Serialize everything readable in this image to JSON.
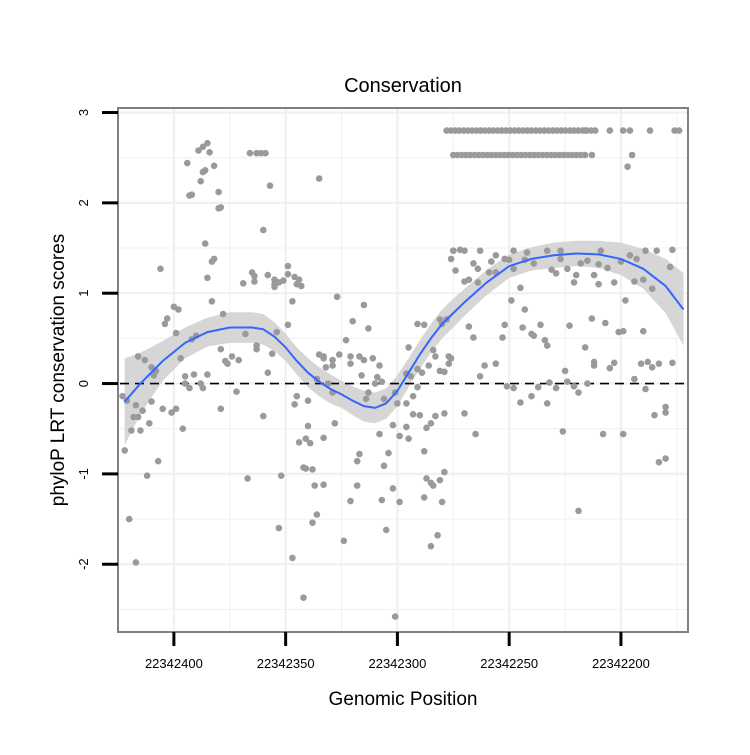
{
  "chart_data": {
    "type": "scatter",
    "title": "Conservation",
    "xlabel": "Genomic Position",
    "ylabel": "phyloP LRT conservation scores",
    "x_reversed": true,
    "xlim": [
      22342425,
      22342170
    ],
    "ylim": [
      -2.75,
      3.05
    ],
    "x_ticks": [
      22342400,
      22342350,
      22342300,
      22342250,
      22342200
    ],
    "x_tick_labels": [
      "22342400",
      "22342350",
      "22342300",
      "22342250",
      "22342200"
    ],
    "y_ticks": [
      -2,
      -1,
      0,
      1,
      2,
      3
    ],
    "y_tick_labels": [
      "-2",
      "-1",
      "0",
      "1",
      "2",
      "3"
    ],
    "grid": true,
    "reference_line": {
      "y": 0,
      "style": "dashed"
    },
    "colors": {
      "points": "#9a9a9a",
      "smooth": "#3366ff",
      "band": "#d6d6d6",
      "frame": "#808080",
      "grid": "#f0f0f0"
    },
    "points": [
      [
        22342403,
        0.72
      ],
      [
        22342398,
        0.82
      ],
      [
        22342399,
        0.56
      ],
      [
        22342397,
        0.28
      ],
      [
        22342395,
        0.0
      ],
      [
        22342393,
        -0.05
      ],
      [
        22342401,
        -0.32
      ],
      [
        22342405,
        -0.28
      ],
      [
        22342408,
        0.14
      ],
      [
        22342411,
        -0.44
      ],
      [
        22342407,
        -0.86
      ],
      [
        22342415,
        -0.52
      ],
      [
        22342418,
        -0.37
      ],
      [
        22342417,
        -0.24
      ],
      [
        22342419,
        -0.52
      ],
      [
        22342414,
        -0.3
      ],
      [
        22342416,
        -0.37
      ],
      [
        22342410,
        -0.2
      ],
      [
        22342421,
        -0.19
      ],
      [
        22342423,
        -0.14
      ],
      [
        22342422,
        -0.74
      ],
      [
        22342420,
        -1.5
      ],
      [
        22342417,
        -1.98
      ],
      [
        22342412,
        -1.02
      ],
      [
        22342410,
        0.18
      ],
      [
        22342406,
        1.27
      ],
      [
        22342404,
        0.66
      ],
      [
        22342400,
        0.85
      ],
      [
        22342413,
        0.26
      ],
      [
        22342416,
        0.3
      ],
      [
        22342409,
        0.09
      ],
      [
        22342394,
        2.44
      ],
      [
        22342393,
        2.08
      ],
      [
        22342392,
        2.09
      ],
      [
        22342389,
        2.58
      ],
      [
        22342387,
        2.62
      ],
      [
        22342385,
        2.66
      ],
      [
        22342384,
        2.56
      ],
      [
        22342387,
        2.34
      ],
      [
        22342386,
        2.36
      ],
      [
        22342382,
        2.41
      ],
      [
        22342388,
        2.24
      ],
      [
        22342380,
        2.12
      ],
      [
        22342380,
        1.94
      ],
      [
        22342379,
        1.95
      ],
      [
        22342386,
        1.55
      ],
      [
        22342383,
        1.35
      ],
      [
        22342382,
        1.38
      ],
      [
        22342385,
        1.17
      ],
      [
        22342383,
        0.91
      ],
      [
        22342378,
        0.77
      ],
      [
        22342379,
        0.38
      ],
      [
        22342374,
        0.3
      ],
      [
        22342371,
        0.26
      ],
      [
        22342377,
        0.25
      ],
      [
        22342390,
        0.53
      ],
      [
        22342392,
        0.49
      ],
      [
        22342388,
        0.0
      ],
      [
        22342387,
        -0.05
      ],
      [
        22342385,
        0.1
      ],
      [
        22342391,
        0.1
      ],
      [
        22342395,
        0.08
      ],
      [
        22342396,
        -0.5
      ],
      [
        22342399,
        -0.28
      ],
      [
        22342379,
        -0.28
      ],
      [
        22342376,
        0.22
      ],
      [
        22342368,
        0.55
      ],
      [
        22342363,
        0.42
      ],
      [
        22342363,
        0.38
      ],
      [
        22342372,
        -0.09
      ],
      [
        22342367,
        -1.05
      ],
      [
        22342366,
        2.55
      ],
      [
        22342363,
        2.55
      ],
      [
        22342361,
        2.55
      ],
      [
        22342359,
        2.55
      ],
      [
        22342357,
        2.19
      ],
      [
        22342360,
        1.7
      ],
      [
        22342364,
        1.19
      ],
      [
        22342365,
        1.23
      ],
      [
        22342364,
        1.13
      ],
      [
        22342369,
        1.11
      ],
      [
        22342358,
        1.2
      ],
      [
        22342355,
        1.15
      ],
      [
        22342355,
        1.1
      ],
      [
        22342353,
        1.12
      ],
      [
        22342355,
        1.07
      ],
      [
        22342351,
        1.14
      ],
      [
        22342349,
        1.3
      ],
      [
        22342349,
        1.21
      ],
      [
        22342346,
        1.18
      ],
      [
        22342344,
        1.15
      ],
      [
        22342345,
        1.1
      ],
      [
        22342347,
        0.91
      ],
      [
        22342343,
        1.08
      ],
      [
        22342349,
        0.65
      ],
      [
        22342354,
        0.57
      ],
      [
        22342356,
        0.33
      ],
      [
        22342358,
        0.12
      ],
      [
        22342360,
        -0.36
      ],
      [
        22342340,
        -0.19
      ],
      [
        22342344,
        -0.65
      ],
      [
        22342342,
        -0.93
      ],
      [
        22342341,
        -0.94
      ],
      [
        22342338,
        -0.95
      ],
      [
        22342339,
        -0.66
      ],
      [
        22342341,
        -0.61
      ],
      [
        22342337,
        -1.13
      ],
      [
        22342333,
        -1.12
      ],
      [
        22342336,
        -1.45
      ],
      [
        22342340,
        -0.47
      ],
      [
        22342345,
        -0.14
      ],
      [
        22342346,
        -0.23
      ],
      [
        22342352,
        -1.02
      ],
      [
        22342353,
        -1.6
      ],
      [
        22342347,
        -1.93
      ],
      [
        22342342,
        -2.37
      ],
      [
        22342338,
        -1.54
      ],
      [
        22342335,
        2.27
      ],
      [
        22342327,
        0.96
      ],
      [
        22342323,
        0.48
      ],
      [
        22342321,
        0.3
      ],
      [
        22342321,
        0.22
      ],
      [
        22342320,
        0.69
      ],
      [
        22342315,
        0.87
      ],
      [
        22342313,
        0.61
      ],
      [
        22342311,
        0.28
      ],
      [
        22342308,
        0.2
      ],
      [
        22342326,
        0.32
      ],
      [
        22342329,
        0.26
      ],
      [
        22342329,
        0.2
      ],
      [
        22342333,
        0.28
      ],
      [
        22342335,
        0.32
      ],
      [
        22342333,
        0.3
      ],
      [
        22342332,
        0.18
      ],
      [
        22342336,
        0.05
      ],
      [
        22342331,
        0.0
      ],
      [
        22342329,
        -0.1
      ],
      [
        22342333,
        -0.6
      ],
      [
        22342328,
        -0.44
      ],
      [
        22342324,
        -1.74
      ],
      [
        22342321,
        -1.3
      ],
      [
        22342318,
        -1.13
      ],
      [
        22342318,
        -0.86
      ],
      [
        22342317,
        -0.78
      ],
      [
        22342316,
        0.09
      ],
      [
        22342317,
        0.3
      ],
      [
        22342315,
        0.26
      ],
      [
        22342313,
        -0.1
      ],
      [
        22342314,
        -0.17
      ],
      [
        22342309,
        0.07
      ],
      [
        22342310,
        0.0
      ],
      [
        22342307,
        0.02
      ],
      [
        22342306,
        -0.17
      ],
      [
        22342304,
        -0.77
      ],
      [
        22342306,
        -0.91
      ],
      [
        22342308,
        -0.56
      ],
      [
        22342307,
        -1.29
      ],
      [
        22342305,
        -1.62
      ],
      [
        22342302,
        -1.16
      ],
      [
        22342299,
        -1.31
      ],
      [
        22342296,
        -0.48
      ],
      [
        22342293,
        -0.34
      ],
      [
        22342296,
        -0.22
      ],
      [
        22342301,
        -0.1
      ],
      [
        22342300,
        -0.22
      ],
      [
        22342296,
        0.11
      ],
      [
        22342294,
        0.08
      ],
      [
        22342291,
        0.16
      ],
      [
        22342289,
        0.12
      ],
      [
        22342291,
        -0.04
      ],
      [
        22342293,
        -0.14
      ],
      [
        22342295,
        -0.61
      ],
      [
        22342290,
        -0.35
      ],
      [
        22342287,
        -0.49
      ],
      [
        22342285,
        -0.44
      ],
      [
        22342284,
        -1.13
      ],
      [
        22342285,
        -1.1
      ],
      [
        22342287,
        -1.05
      ],
      [
        22342288,
        -1.26
      ],
      [
        22342285,
        -1.8
      ],
      [
        22342282,
        -1.68
      ],
      [
        22342280,
        -1.31
      ],
      [
        22342279,
        -0.98
      ],
      [
        22342281,
        -1.07
      ],
      [
        22342279,
        -0.33
      ],
      [
        22342284,
        0.37
      ],
      [
        22342288,
        0.65
      ],
      [
        22342291,
        0.66
      ],
      [
        22342295,
        0.4
      ],
      [
        22342301,
        -2.58
      ],
      [
        22342276,
        0.28
      ],
      [
        22342277,
        0.3
      ],
      [
        22342275,
        1.47
      ],
      [
        22342275,
        1.47
      ],
      [
        22342274,
        1.25
      ],
      [
        22342270,
        1.13
      ],
      [
        22342268,
        1.15
      ],
      [
        22342263,
        1.47
      ],
      [
        22342256,
        1.23
      ],
      [
        22342252,
        0.65
      ],
      [
        22342253,
        0.51
      ],
      [
        22342244,
        0.62
      ],
      [
        22342245,
        -0.21
      ],
      [
        22342248,
        -0.05
      ],
      [
        22342251,
        -0.03
      ],
      [
        22342256,
        0.22
      ],
      [
        22342261,
        0.2
      ],
      [
        22342263,
        0.08
      ],
      [
        22342268,
        0.63
      ],
      [
        22342234,
        0.48
      ],
      [
        22342229,
        -0.05
      ],
      [
        22342232,
        0.01
      ],
      [
        22342240,
        -0.14
      ],
      [
        22342225,
        0.14
      ],
      [
        22342226,
        -0.53
      ],
      [
        22342219,
        -1.41
      ],
      [
        22342221,
        1.12
      ],
      [
        22342227,
        1.47
      ],
      [
        22342231,
        1.26
      ],
      [
        22342224,
        1.27
      ],
      [
        22342223,
        0.64
      ],
      [
        22342212,
        0.24
      ],
      [
        22342205,
        0.17
      ],
      [
        22342208,
        -0.56
      ],
      [
        22342212,
        1.2
      ],
      [
        22342209,
        1.47
      ],
      [
        22342199,
        -0.56
      ],
      [
        22342199,
        0.58
      ],
      [
        22342191,
        0.22
      ],
      [
        22342194,
        0.05
      ],
      [
        22342188,
        0.24
      ],
      [
        22342189,
        -0.06
      ],
      [
        22342184,
        1.47
      ],
      [
        22342183,
        0.22
      ],
      [
        22342177,
        0.23
      ],
      [
        22342185,
        -0.35
      ],
      [
        22342183,
        -0.87
      ],
      [
        22342180,
        -0.83
      ],
      [
        22342180,
        -0.26
      ],
      [
        22342180,
        -0.32
      ],
      [
        22342178,
        1.29
      ],
      [
        22342177,
        1.48
      ],
      [
        22342189,
        1.47
      ],
      [
        22342194,
        1.13
      ],
      [
        22342198,
        0.92
      ],
      [
        22342201,
        0.57
      ],
      [
        22342203,
        0.23
      ],
      [
        22342197,
        2.4
      ],
      [
        22342195,
        2.53
      ],
      [
        22342196,
        2.8
      ],
      [
        22342205,
        2.8
      ],
      [
        22342216,
        2.8
      ],
      [
        22342213,
        2.53
      ],
      [
        22342176,
        2.8
      ],
      [
        22342174,
        2.8
      ],
      [
        22342187,
        2.8
      ],
      [
        22342199,
        2.8
      ],
      [
        22342233,
        0.42
      ],
      [
        22342236,
        0.65
      ],
      [
        22342240,
        0.55
      ],
      [
        22342243,
        1.37
      ],
      [
        22342248,
        1.27
      ],
      [
        22342250,
        1.37
      ],
      [
        22342256,
        1.42
      ],
      [
        22342258,
        1.35
      ],
      [
        22342264,
        1.27
      ],
      [
        22342266,
        1.33
      ],
      [
        22342270,
        1.47
      ],
      [
        22342276,
        1.38
      ],
      [
        22342272,
        1.48
      ],
      [
        22342278,
        0.71
      ],
      [
        22342280,
        0.66
      ],
      [
        22342281,
        0.71
      ],
      [
        22342281,
        0.14
      ],
      [
        22342270,
        -0.33
      ],
      [
        22342265,
        -0.56
      ],
      [
        22342288,
        -0.75
      ],
      [
        22342283,
        -0.36
      ],
      [
        22342286,
        0.2
      ],
      [
        22342299,
        -0.58
      ],
      [
        22342302,
        -0.46
      ],
      [
        22342266,
        0.51
      ],
      [
        22342277,
        0.22
      ],
      [
        22342279,
        0.13
      ],
      [
        22342283,
        0.3
      ],
      [
        22342264,
        1.12
      ],
      [
        22342259,
        1.23
      ],
      [
        22342224,
        0.02
      ],
      [
        22342215,
        0.0
      ],
      [
        22342212,
        0.2
      ],
      [
        22342216,
        0.4
      ],
      [
        22342213,
        0.72
      ],
      [
        22342207,
        0.67
      ],
      [
        22342203,
        1.12
      ],
      [
        22342210,
        1.32
      ],
      [
        22342215,
        1.36
      ],
      [
        22342218,
        1.33
      ],
      [
        22342220,
        1.2
      ],
      [
        22342227,
        1.38
      ],
      [
        22342229,
        1.22
      ],
      [
        22342233,
        1.47
      ],
      [
        22342239,
        1.33
      ],
      [
        22342242,
        1.45
      ],
      [
        22342248,
        1.47
      ],
      [
        22342252,
        1.38
      ],
      [
        22342186,
        1.05
      ],
      [
        22342190,
        1.15
      ],
      [
        22342193,
        1.38
      ],
      [
        22342196,
        1.42
      ],
      [
        22342200,
        1.35
      ],
      [
        22342206,
        1.28
      ],
      [
        22342210,
        1.1
      ],
      [
        22342245,
        1.06
      ],
      [
        22342249,
        0.92
      ],
      [
        22342243,
        0.82
      ],
      [
        22342239,
        0.53
      ],
      [
        22342233,
        -0.22
      ],
      [
        22342237,
        -0.04
      ],
      [
        22342221,
        -0.03
      ],
      [
        22342219,
        -0.1
      ],
      [
        22342190,
        0.58
      ],
      [
        22342186,
        0.18
      ]
    ],
    "ceiling_rows": [
      {
        "y": 2.8,
        "x_from": 22342278,
        "x_to": 22342210
      },
      {
        "y": 2.53,
        "x_from": 22342275,
        "x_to": 22342216
      }
    ],
    "smooth": {
      "x": [
        22342422,
        22342415,
        22342405,
        22342395,
        22342385,
        22342375,
        22342365,
        22342360,
        22342355,
        22342350,
        22342345,
        22342340,
        22342335,
        22342330,
        22342325,
        22342320,
        22342315,
        22342310,
        22342305,
        22342300,
        22342295,
        22342290,
        22342285,
        22342280,
        22342275,
        22342270,
        22342260,
        22342250,
        22342240,
        22342230,
        22342220,
        22342210,
        22342200,
        22342190,
        22342180,
        22342172
      ],
      "y": [
        -0.2,
        0.0,
        0.25,
        0.45,
        0.57,
        0.62,
        0.62,
        0.6,
        0.52,
        0.4,
        0.25,
        0.12,
        0.02,
        -0.06,
        -0.12,
        -0.19,
        -0.25,
        -0.27,
        -0.22,
        -0.08,
        0.12,
        0.32,
        0.5,
        0.66,
        0.78,
        0.9,
        1.12,
        1.3,
        1.38,
        1.42,
        1.44,
        1.43,
        1.38,
        1.27,
        1.08,
        0.82
      ],
      "band_half_width": [
        0.48,
        0.34,
        0.22,
        0.17,
        0.16,
        0.17,
        0.17,
        0.17,
        0.16,
        0.15,
        0.15,
        0.16,
        0.16,
        0.16,
        0.15,
        0.16,
        0.17,
        0.17,
        0.17,
        0.17,
        0.16,
        0.16,
        0.16,
        0.16,
        0.16,
        0.15,
        0.14,
        0.13,
        0.13,
        0.14,
        0.14,
        0.15,
        0.18,
        0.22,
        0.3,
        0.4
      ]
    }
  }
}
